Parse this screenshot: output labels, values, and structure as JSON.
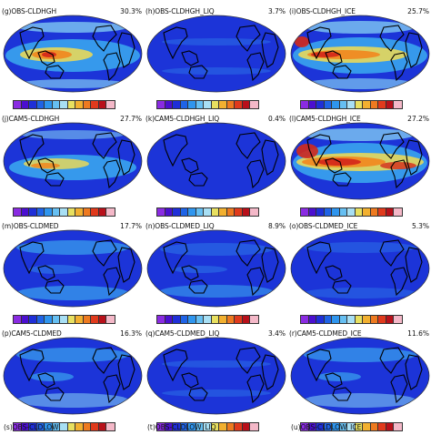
{
  "panels": [
    {
      "title": "(g)OBS-CLDHGH",
      "pct": "30.3%",
      "pattern": "hgh_obs"
    },
    {
      "title": "(h)OBS-CLDHGH_LIQ",
      "pct": "3.7%",
      "pattern": "liq_low"
    },
    {
      "title": "(i)OBS-CLDHGH_ICE",
      "pct": "25.7%",
      "pattern": "hgh_ice_obs"
    },
    {
      "title": "(j)CAM5-CLDHGH",
      "pct": "27.7%",
      "pattern": "hgh_cam"
    },
    {
      "title": "(k)CAM5-CLDHGH_LIQ",
      "pct": "0.4%",
      "pattern": "liq_none"
    },
    {
      "title": "(l)CAM5-CLDHGH_ICE",
      "pct": "27.2%",
      "pattern": "hgh_ice_cam"
    },
    {
      "title": "(m)OBS-CLDMED",
      "pct": "17.7%",
      "pattern": "med"
    },
    {
      "title": "(n)OBS-CLDMED_LIQ",
      "pct": "8.9%",
      "pattern": "med_liq"
    },
    {
      "title": "(o)OBS-CLDMED_ICE",
      "pct": "5.3%",
      "pattern": "med_ice"
    },
    {
      "title": "(p)CAM5-CLDMED",
      "pct": "16.3%",
      "pattern": "med_cam"
    },
    {
      "title": "(q)CAM5-CLDMED_LIQ",
      "pct": "3.4%",
      "pattern": "liq_low"
    },
    {
      "title": "(r)CAM5-CLDMED_ICE",
      "pct": "11.6%",
      "pattern": "med_cam"
    }
  ],
  "bottom_titles": [
    "(s)OBS-CLDLOW",
    "(t)OBS-CLDLOW_LIQ",
    "(u)OBS-CLDLOW_ICE"
  ],
  "colorbar": [
    "#8a2be2",
    "#4b0fd0",
    "#1f2fd8",
    "#1f63e6",
    "#2f95ee",
    "#66bff2",
    "#a8dff4",
    "#e8e060",
    "#f2b030",
    "#ee7a20",
    "#e03a1c",
    "#b8101a",
    "#f4b8c8"
  ],
  "colors": {
    "ocean_base": "#1c34d8",
    "land_outline": "#000000"
  }
}
